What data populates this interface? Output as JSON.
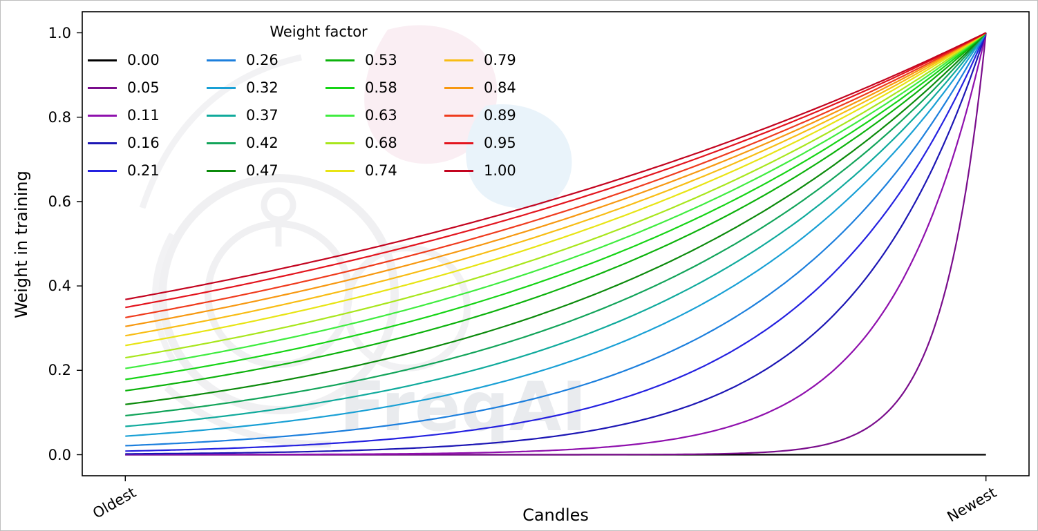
{
  "figure": {
    "background": "#ffffff",
    "watermark_text": "FreqAI"
  },
  "chart_data": {
    "type": "line",
    "title": "",
    "xlabel": "Candles",
    "ylabel": "Weight in training",
    "x_tick_labels": [
      "Oldest",
      "Newest"
    ],
    "y_ticks": [
      0.0,
      0.2,
      0.4,
      0.6,
      0.8,
      1.0
    ],
    "y_tick_labels": [
      "0.0",
      "0.2",
      "0.4",
      "0.6",
      "0.8",
      "1.0"
    ],
    "ylim": [
      0,
      1
    ],
    "xlim_note": "x spans training window from Oldest candle (x=0) to Newest candle (x=1)",
    "grid": false,
    "curve_formula": "weight(x) = exp(-(1 - x) / weight_factor); weight_factor = 0 gives flat 0 weight",
    "legend": {
      "title": "Weight factor",
      "location": "upper left",
      "ncols": 4,
      "frame": false
    },
    "series": [
      {
        "label": "0.00",
        "weight_factor": 0.0,
        "color": "#000000"
      },
      {
        "label": "0.05",
        "weight_factor": 0.05,
        "color": "#7a0d8c"
      },
      {
        "label": "0.11",
        "weight_factor": 0.11,
        "color": "#8f10ad"
      },
      {
        "label": "0.16",
        "weight_factor": 0.16,
        "color": "#1c16b4"
      },
      {
        "label": "0.21",
        "weight_factor": 0.21,
        "color": "#2421e0"
      },
      {
        "label": "0.26",
        "weight_factor": 0.26,
        "color": "#1c7fdd"
      },
      {
        "label": "0.32",
        "weight_factor": 0.32,
        "color": "#19a0d5"
      },
      {
        "label": "0.37",
        "weight_factor": 0.37,
        "color": "#10aa9c"
      },
      {
        "label": "0.42",
        "weight_factor": 0.42,
        "color": "#12a45a"
      },
      {
        "label": "0.47",
        "weight_factor": 0.47,
        "color": "#0b8a0b"
      },
      {
        "label": "0.53",
        "weight_factor": 0.53,
        "color": "#0cb20c"
      },
      {
        "label": "0.58",
        "weight_factor": 0.58,
        "color": "#15d415"
      },
      {
        "label": "0.63",
        "weight_factor": 0.63,
        "color": "#3fec3f"
      },
      {
        "label": "0.68",
        "weight_factor": 0.68,
        "color": "#a8e61c"
      },
      {
        "label": "0.74",
        "weight_factor": 0.74,
        "color": "#e8e414"
      },
      {
        "label": "0.79",
        "weight_factor": 0.79,
        "color": "#f8bd14"
      },
      {
        "label": "0.84",
        "weight_factor": 0.84,
        "color": "#f79810"
      },
      {
        "label": "0.89",
        "weight_factor": 0.89,
        "color": "#ef3b1d"
      },
      {
        "label": "0.95",
        "weight_factor": 0.95,
        "color": "#e3141d"
      },
      {
        "label": "1.00",
        "weight_factor": 1.0,
        "color": "#c3041f"
      }
    ]
  }
}
